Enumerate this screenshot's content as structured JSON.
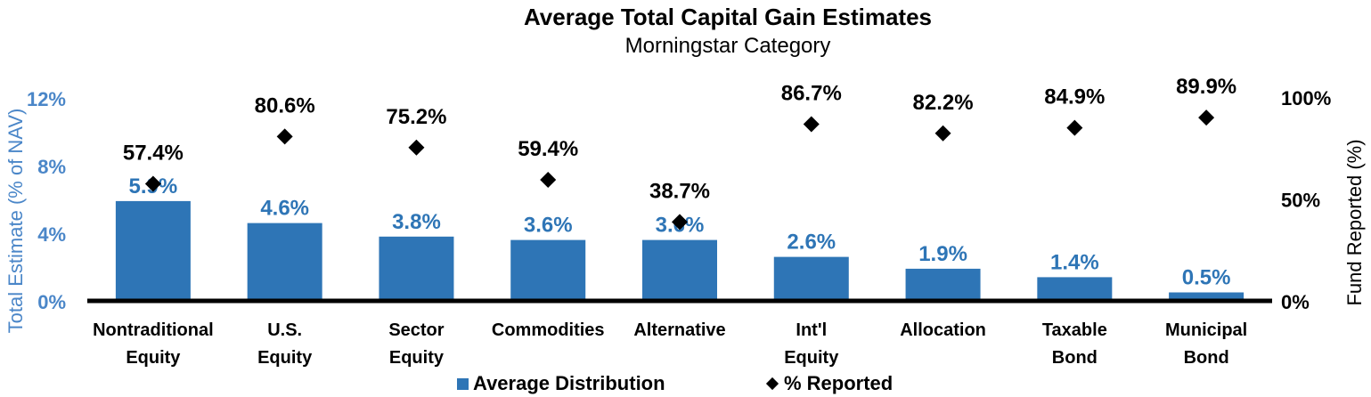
{
  "chart_data": {
    "type": "bar",
    "title": "Average Total Capital Gain Estimates",
    "subtitle": "Morningstar Category",
    "categories": [
      [
        "Nontraditional",
        "Equity"
      ],
      [
        "U.S.",
        "Equity"
      ],
      [
        "Sector",
        "Equity"
      ],
      [
        "Commodities"
      ],
      [
        "Alternative"
      ],
      [
        "Int'l",
        "Equity"
      ],
      [
        "Allocation"
      ],
      [
        "Taxable",
        "Bond"
      ],
      [
        "Municipal",
        "Bond"
      ]
    ],
    "series": [
      {
        "name": "Average Distribution",
        "type": "bar",
        "axis": "left",
        "color": "#2e75b6",
        "values": [
          5.9,
          4.6,
          3.8,
          3.6,
          3.6,
          2.6,
          1.9,
          1.4,
          0.5
        ],
        "labels": [
          "5.9%",
          "4.6%",
          "3.8%",
          "3.6%",
          "3.6%",
          "2.6%",
          "1.9%",
          "1.4%",
          "0.5%"
        ]
      },
      {
        "name": "% Reported",
        "type": "scatter",
        "marker": "diamond",
        "axis": "right",
        "color": "#000000",
        "values": [
          57.4,
          80.6,
          75.2,
          59.4,
          38.7,
          86.7,
          82.2,
          84.9,
          89.9
        ],
        "labels": [
          "57.4%",
          "80.6%",
          "75.2%",
          "59.4%",
          "38.7%",
          "86.7%",
          "82.2%",
          "84.9%",
          "89.9%"
        ]
      }
    ],
    "ylabel": "Total Estimate (% of NAV)",
    "ylim": [
      0,
      12
    ],
    "yticks": [
      0,
      4,
      8,
      12
    ],
    "ytick_labels": [
      "0%",
      "4%",
      "8%",
      "12%"
    ],
    "y2label": "Fund Reported (%)",
    "y2lim": [
      0,
      100
    ],
    "y2ticks": [
      0,
      50,
      100
    ],
    "y2tick_labels": [
      "0%",
      "50%",
      "100%"
    ],
    "legend_position": "bottom",
    "grid": false,
    "axis_color": "#4a86c8"
  }
}
